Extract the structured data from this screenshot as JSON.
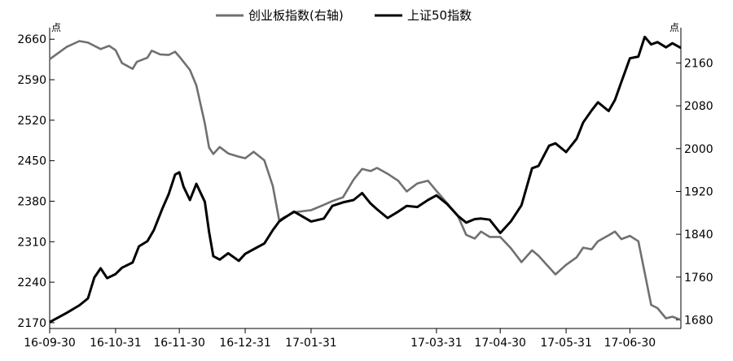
{
  "chart_data": {
    "type": "line",
    "title": "",
    "legend": {
      "placement": "top-center"
    },
    "grid": false,
    "x_ticks": [
      "16-09-30",
      "16-10-31",
      "16-11-30",
      "16-12-31",
      "17-01-31",
      "17-03-31",
      "17-04-30",
      "17-05-31",
      "17-06-30"
    ],
    "left_axis": {
      "unit": "点",
      "ticks": [
        2170,
        2240,
        2310,
        2380,
        2450,
        2520,
        2590,
        2660
      ],
      "ylim": [
        2160,
        2680
      ]
    },
    "right_axis": {
      "unit": "点",
      "ticks": [
        1680,
        1760,
        1840,
        1920,
        2000,
        2080,
        2160
      ],
      "ylim": [
        1664,
        2226
      ]
    },
    "series": [
      {
        "name": "创业板指数(右轴)",
        "axis": "right",
        "color": "#707070",
        "points": [
          [
            "16-09-30",
            2167
          ],
          [
            "16-10-08",
            2190
          ],
          [
            "16-10-14",
            2201
          ],
          [
            "16-10-18",
            2198
          ],
          [
            "16-10-24",
            2186
          ],
          [
            "16-10-28",
            2192
          ],
          [
            "16-10-31",
            2184
          ],
          [
            "16-11-03",
            2160
          ],
          [
            "16-11-08",
            2149
          ],
          [
            "16-11-10",
            2162
          ],
          [
            "16-11-15",
            2170
          ],
          [
            "16-11-17",
            2183
          ],
          [
            "16-11-21",
            2176
          ],
          [
            "16-11-25",
            2175
          ],
          [
            "16-11-28",
            2181
          ],
          [
            "16-11-30",
            2172
          ],
          [
            "16-12-05",
            2147
          ],
          [
            "16-12-08",
            2118
          ],
          [
            "16-12-12",
            2047
          ],
          [
            "16-12-14",
            2002
          ],
          [
            "16-12-16",
            1990
          ],
          [
            "16-12-19",
            2003
          ],
          [
            "16-12-23",
            1991
          ],
          [
            "16-12-28",
            1985
          ],
          [
            "16-12-31",
            1982
          ],
          [
            "17-01-04",
            1994
          ],
          [
            "17-01-09",
            1978
          ],
          [
            "17-01-13",
            1930
          ],
          [
            "17-01-16",
            1866
          ],
          [
            "17-01-18",
            1871
          ],
          [
            "17-01-23",
            1881
          ],
          [
            "17-01-31",
            1885
          ],
          [
            "17-02-06",
            1895
          ],
          [
            "17-02-10",
            1902
          ],
          [
            "17-02-15",
            1909
          ],
          [
            "17-02-20",
            1942
          ],
          [
            "17-02-24",
            1962
          ],
          [
            "17-02-28",
            1958
          ],
          [
            "17-03-03",
            1964
          ],
          [
            "17-03-08",
            1953
          ],
          [
            "17-03-13",
            1940
          ],
          [
            "17-03-17",
            1920
          ],
          [
            "17-03-22",
            1935
          ],
          [
            "17-03-27",
            1940
          ],
          [
            "17-03-31",
            1921
          ],
          [
            "17-04-05",
            1898
          ],
          [
            "17-04-10",
            1875
          ],
          [
            "17-04-14",
            1839
          ],
          [
            "17-04-18",
            1832
          ],
          [
            "17-04-21",
            1845
          ],
          [
            "17-04-25",
            1835
          ],
          [
            "17-04-30",
            1835
          ],
          [
            "17-05-05",
            1814
          ],
          [
            "17-05-10",
            1788
          ],
          [
            "17-05-15",
            1810
          ],
          [
            "17-05-18",
            1800
          ],
          [
            "17-05-23",
            1778
          ],
          [
            "17-05-26",
            1765
          ],
          [
            "17-05-31",
            1783
          ],
          [
            "17-06-05",
            1797
          ],
          [
            "17-06-08",
            1815
          ],
          [
            "17-06-12",
            1812
          ],
          [
            "17-06-15",
            1827
          ],
          [
            "17-06-20",
            1838
          ],
          [
            "17-06-23",
            1845
          ],
          [
            "17-06-26",
            1831
          ],
          [
            "17-06-30",
            1837
          ],
          [
            "17-07-04",
            1827
          ],
          [
            "17-07-07",
            1768
          ],
          [
            "17-07-10",
            1708
          ],
          [
            "17-07-13",
            1702
          ],
          [
            "17-07-17",
            1683
          ],
          [
            "17-07-20",
            1686
          ],
          [
            "17-07-24",
            1680
          ]
        ]
      },
      {
        "name": "上证50指数",
        "axis": "left",
        "color": "#000000",
        "points": [
          [
            "16-09-30",
            2171
          ],
          [
            "16-10-08",
            2187
          ],
          [
            "16-10-14",
            2200
          ],
          [
            "16-10-18",
            2212
          ],
          [
            "16-10-21",
            2248
          ],
          [
            "16-10-24",
            2264
          ],
          [
            "16-10-27",
            2247
          ],
          [
            "16-10-31",
            2254
          ],
          [
            "16-11-03",
            2265
          ],
          [
            "16-11-08",
            2274
          ],
          [
            "16-11-11",
            2302
          ],
          [
            "16-11-15",
            2311
          ],
          [
            "16-11-18",
            2330
          ],
          [
            "16-11-22",
            2367
          ],
          [
            "16-11-25",
            2392
          ],
          [
            "16-11-28",
            2426
          ],
          [
            "16-11-30",
            2430
          ],
          [
            "16-12-02",
            2405
          ],
          [
            "16-12-05",
            2382
          ],
          [
            "16-12-08",
            2410
          ],
          [
            "16-12-12",
            2379
          ],
          [
            "16-12-14",
            2327
          ],
          [
            "16-12-16",
            2285
          ],
          [
            "16-12-19",
            2279
          ],
          [
            "16-12-23",
            2290
          ],
          [
            "16-12-28",
            2277
          ],
          [
            "16-12-31",
            2289
          ],
          [
            "17-01-04",
            2297
          ],
          [
            "17-01-09",
            2307
          ],
          [
            "17-01-13",
            2330
          ],
          [
            "17-01-16",
            2345
          ],
          [
            "17-01-18",
            2350
          ],
          [
            "17-01-23",
            2362
          ],
          [
            "17-01-31",
            2345
          ],
          [
            "17-02-06",
            2350
          ],
          [
            "17-02-10",
            2372
          ],
          [
            "17-02-15",
            2378
          ],
          [
            "17-02-20",
            2382
          ],
          [
            "17-02-24",
            2394
          ],
          [
            "17-02-28",
            2376
          ],
          [
            "17-03-03",
            2366
          ],
          [
            "17-03-08",
            2351
          ],
          [
            "17-03-13",
            2362
          ],
          [
            "17-03-17",
            2372
          ],
          [
            "17-03-22",
            2370
          ],
          [
            "17-03-27",
            2382
          ],
          [
            "17-03-31",
            2390
          ],
          [
            "17-04-05",
            2375
          ],
          [
            "17-04-10",
            2355
          ],
          [
            "17-04-14",
            2343
          ],
          [
            "17-04-18",
            2349
          ],
          [
            "17-04-21",
            2350
          ],
          [
            "17-04-25",
            2348
          ],
          [
            "17-04-30",
            2325
          ],
          [
            "17-05-05",
            2345
          ],
          [
            "17-05-10",
            2373
          ],
          [
            "17-05-15",
            2437
          ],
          [
            "17-05-18",
            2441
          ],
          [
            "17-05-23",
            2476
          ],
          [
            "17-05-26",
            2480
          ],
          [
            "17-05-31",
            2465
          ],
          [
            "17-06-05",
            2488
          ],
          [
            "17-06-08",
            2516
          ],
          [
            "17-06-12",
            2537
          ],
          [
            "17-06-15",
            2551
          ],
          [
            "17-06-20",
            2536
          ],
          [
            "17-06-23",
            2555
          ],
          [
            "17-06-26",
            2586
          ],
          [
            "17-06-30",
            2627
          ],
          [
            "17-07-04",
            2630
          ],
          [
            "17-07-07",
            2664
          ],
          [
            "17-07-10",
            2651
          ],
          [
            "17-07-13",
            2655
          ],
          [
            "17-07-17",
            2646
          ],
          [
            "17-07-20",
            2653
          ],
          [
            "17-07-24",
            2645
          ]
        ]
      }
    ]
  }
}
